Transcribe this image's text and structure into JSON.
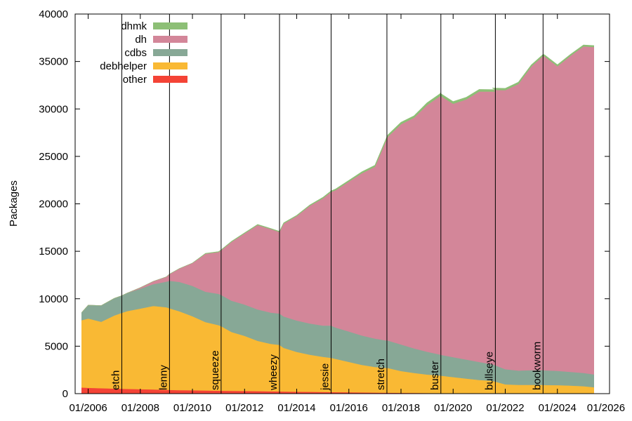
{
  "chart_data": {
    "type": "area",
    "stacked": true,
    "xlabel": "",
    "ylabel": "Packages",
    "xlim": [
      2005.5,
      2026.0
    ],
    "ylim": [
      0,
      40000
    ],
    "yticks": [
      0,
      5000,
      10000,
      15000,
      20000,
      25000,
      30000,
      35000,
      40000
    ],
    "xticks": [
      {
        "x": 2006,
        "label": "01/2006"
      },
      {
        "x": 2008,
        "label": "01/2008"
      },
      {
        "x": 2010,
        "label": "01/2010"
      },
      {
        "x": 2012,
        "label": "01/2012"
      },
      {
        "x": 2014,
        "label": "01/2014"
      },
      {
        "x": 2016,
        "label": "01/2016"
      },
      {
        "x": 2018,
        "label": "01/2018"
      },
      {
        "x": 2020,
        "label": "01/2020"
      },
      {
        "x": 2022,
        "label": "01/2022"
      },
      {
        "x": 2024,
        "label": "01/2024"
      },
      {
        "x": 2026,
        "label": "01/2026"
      }
    ],
    "legend_position": "top-left",
    "legend_order": [
      "dhmk",
      "dh",
      "cdbs",
      "debhelper",
      "other"
    ],
    "releases": [
      {
        "name": "etch",
        "x": 2007.29
      },
      {
        "name": "lenny",
        "x": 2009.12
      },
      {
        "name": "squeeze",
        "x": 2011.1
      },
      {
        "name": "wheezy",
        "x": 2013.34
      },
      {
        "name": "jessie",
        "x": 2015.32
      },
      {
        "name": "stretch",
        "x": 2017.46
      },
      {
        "name": "buster",
        "x": 2019.53
      },
      {
        "name": "bullseye",
        "x": 2021.62
      },
      {
        "name": "bookworm",
        "x": 2023.45
      }
    ],
    "x": [
      2005.75,
      2006.0,
      2006.5,
      2007.0,
      2007.29,
      2007.5,
      2008.0,
      2008.5,
      2009.0,
      2009.12,
      2009.5,
      2010.0,
      2010.5,
      2011.0,
      2011.1,
      2011.5,
      2012.0,
      2012.5,
      2013.0,
      2013.34,
      2013.5,
      2014.0,
      2014.5,
      2015.0,
      2015.32,
      2015.5,
      2016.0,
      2016.5,
      2017.0,
      2017.46,
      2017.5,
      2018.0,
      2018.5,
      2019.0,
      2019.53,
      2019.5,
      2020.0,
      2020.5,
      2021.0,
      2021.62,
      2021.5,
      2022.0,
      2022.5,
      2023.0,
      2023.45,
      2023.5,
      2024.0,
      2024.5,
      2025.0,
      2025.4
    ],
    "series": [
      {
        "name": "other",
        "color": "#f44336",
        "values": [
          650,
          620,
          580,
          540,
          520,
          500,
          470,
          440,
          410,
          400,
          380,
          360,
          340,
          320,
          310,
          300,
          290,
          270,
          250,
          240,
          230,
          210,
          200,
          180,
          170,
          160,
          150,
          130,
          110,
          100,
          100,
          90,
          80,
          70,
          60,
          60,
          50,
          50,
          40,
          40,
          40,
          30,
          30,
          30,
          30,
          30,
          30,
          30,
          30,
          30
        ]
      },
      {
        "name": "debhelper",
        "color": "#f9b934",
        "values": [
          7100,
          7300,
          7000,
          7700,
          8000,
          8200,
          8500,
          8800,
          8700,
          8600,
          8300,
          7800,
          7200,
          6900,
          6800,
          6200,
          5800,
          5300,
          5000,
          4900,
          4600,
          4200,
          3900,
          3700,
          3600,
          3500,
          3200,
          2900,
          2700,
          2600,
          2600,
          2300,
          2100,
          1950,
          1850,
          1850,
          1700,
          1550,
          1400,
          1300,
          1320,
          950,
          900,
          900,
          900,
          880,
          870,
          820,
          760,
          650
        ]
      },
      {
        "name": "cdbs",
        "color": "#87a896",
        "values": [
          800,
          1400,
          1700,
          1800,
          1800,
          1900,
          2100,
          2300,
          2700,
          2900,
          3100,
          3200,
          3200,
          3300,
          3300,
          3300,
          3300,
          3300,
          3300,
          3300,
          3300,
          3300,
          3300,
          3300,
          3400,
          3300,
          3200,
          3100,
          3000,
          2900,
          2900,
          2800,
          2600,
          2400,
          2200,
          2200,
          2100,
          2000,
          1900,
          1700,
          1750,
          1600,
          1500,
          1550,
          1550,
          1550,
          1500,
          1450,
          1400,
          1350
        ]
      },
      {
        "name": "dh",
        "color": "#d38699",
        "values": [
          0,
          0,
          0,
          0,
          0,
          0,
          100,
          300,
          500,
          700,
          1400,
          2400,
          4000,
          4400,
          4700,
          6200,
          7500,
          8900,
          8800,
          8600,
          9800,
          11000,
          12400,
          13400,
          14100,
          14500,
          15800,
          17100,
          18100,
          21300,
          21500,
          23200,
          24300,
          26000,
          27300,
          27300,
          26700,
          27400,
          28500,
          28800,
          28900,
          29400,
          30200,
          32000,
          33100,
          33100,
          32100,
          33300,
          34400,
          34500
        ]
      },
      {
        "name": "dhmk",
        "color": "#8dbf76",
        "values": [
          0,
          0,
          0,
          0,
          0,
          0,
          0,
          0,
          0,
          0,
          0,
          0,
          50,
          50,
          50,
          50,
          60,
          60,
          60,
          60,
          70,
          80,
          80,
          100,
          100,
          120,
          130,
          150,
          160,
          180,
          180,
          200,
          200,
          230,
          250,
          250,
          230,
          220,
          220,
          200,
          200,
          190,
          180,
          170,
          160,
          160,
          160,
          150,
          150,
          150
        ]
      }
    ]
  }
}
